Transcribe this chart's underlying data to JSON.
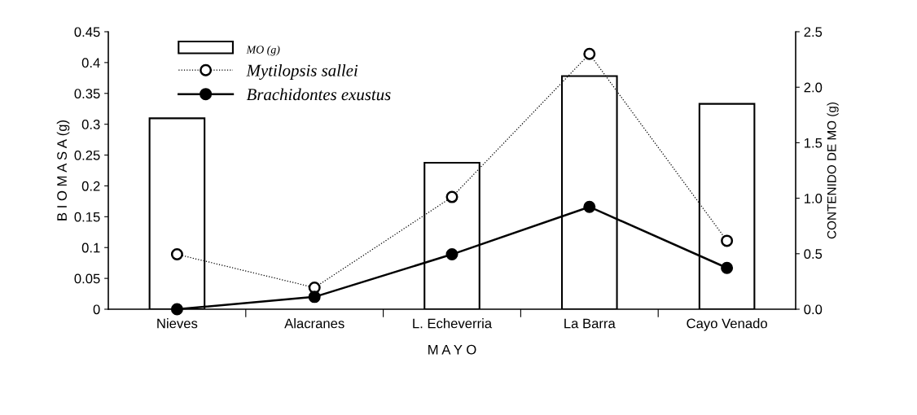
{
  "chart_data": {
    "type": "line",
    "categories": [
      "Nieves",
      "Alacranes",
      "L. Echeverria",
      "La Barra",
      "Cayo Venado"
    ],
    "xlabel": "M A Y O",
    "ylabel": "B I O M A S A (g)",
    "y2label": "CONTENIDO DE MO (g)",
    "series": [
      {
        "name": "MO (g)",
        "type": "bar",
        "axis": "y2",
        "color": "#ffffff",
        "values": [
          1.72,
          null,
          1.32,
          2.1,
          1.85
        ]
      },
      {
        "name": "Mytilopsis sallei",
        "color": "#000000",
        "line_style": "dotted",
        "marker": "circle",
        "values": [
          0.089,
          0.035,
          0.182,
          0.414,
          0.111
        ]
      },
      {
        "name": "Brachidontes exustus",
        "color": "#000000",
        "line_style": "solid",
        "marker": "circle",
        "values": [
          0,
          0.02,
          0.089,
          0.166,
          0.067
        ]
      }
    ],
    "ylim": [
      0,
      0.45
    ],
    "yticks": [
      0,
      0.05,
      0.1,
      0.15,
      0.2,
      0.25,
      0.3,
      0.35,
      0.4,
      0.45
    ],
    "y2lim": [
      0,
      2.5
    ],
    "y2ticks": [
      {
        "value": 0,
        "label": "0.0"
      },
      {
        "value": 0.5,
        "label": "0.5"
      },
      {
        "value": 1,
        "label": "1.0"
      },
      {
        "value": 1.5,
        "label": "1.5"
      },
      {
        "value": 2,
        "label": "2.0"
      },
      {
        "value": 2.5,
        "label": "2.5"
      }
    ],
    "grid": false,
    "legend": "top left"
  }
}
